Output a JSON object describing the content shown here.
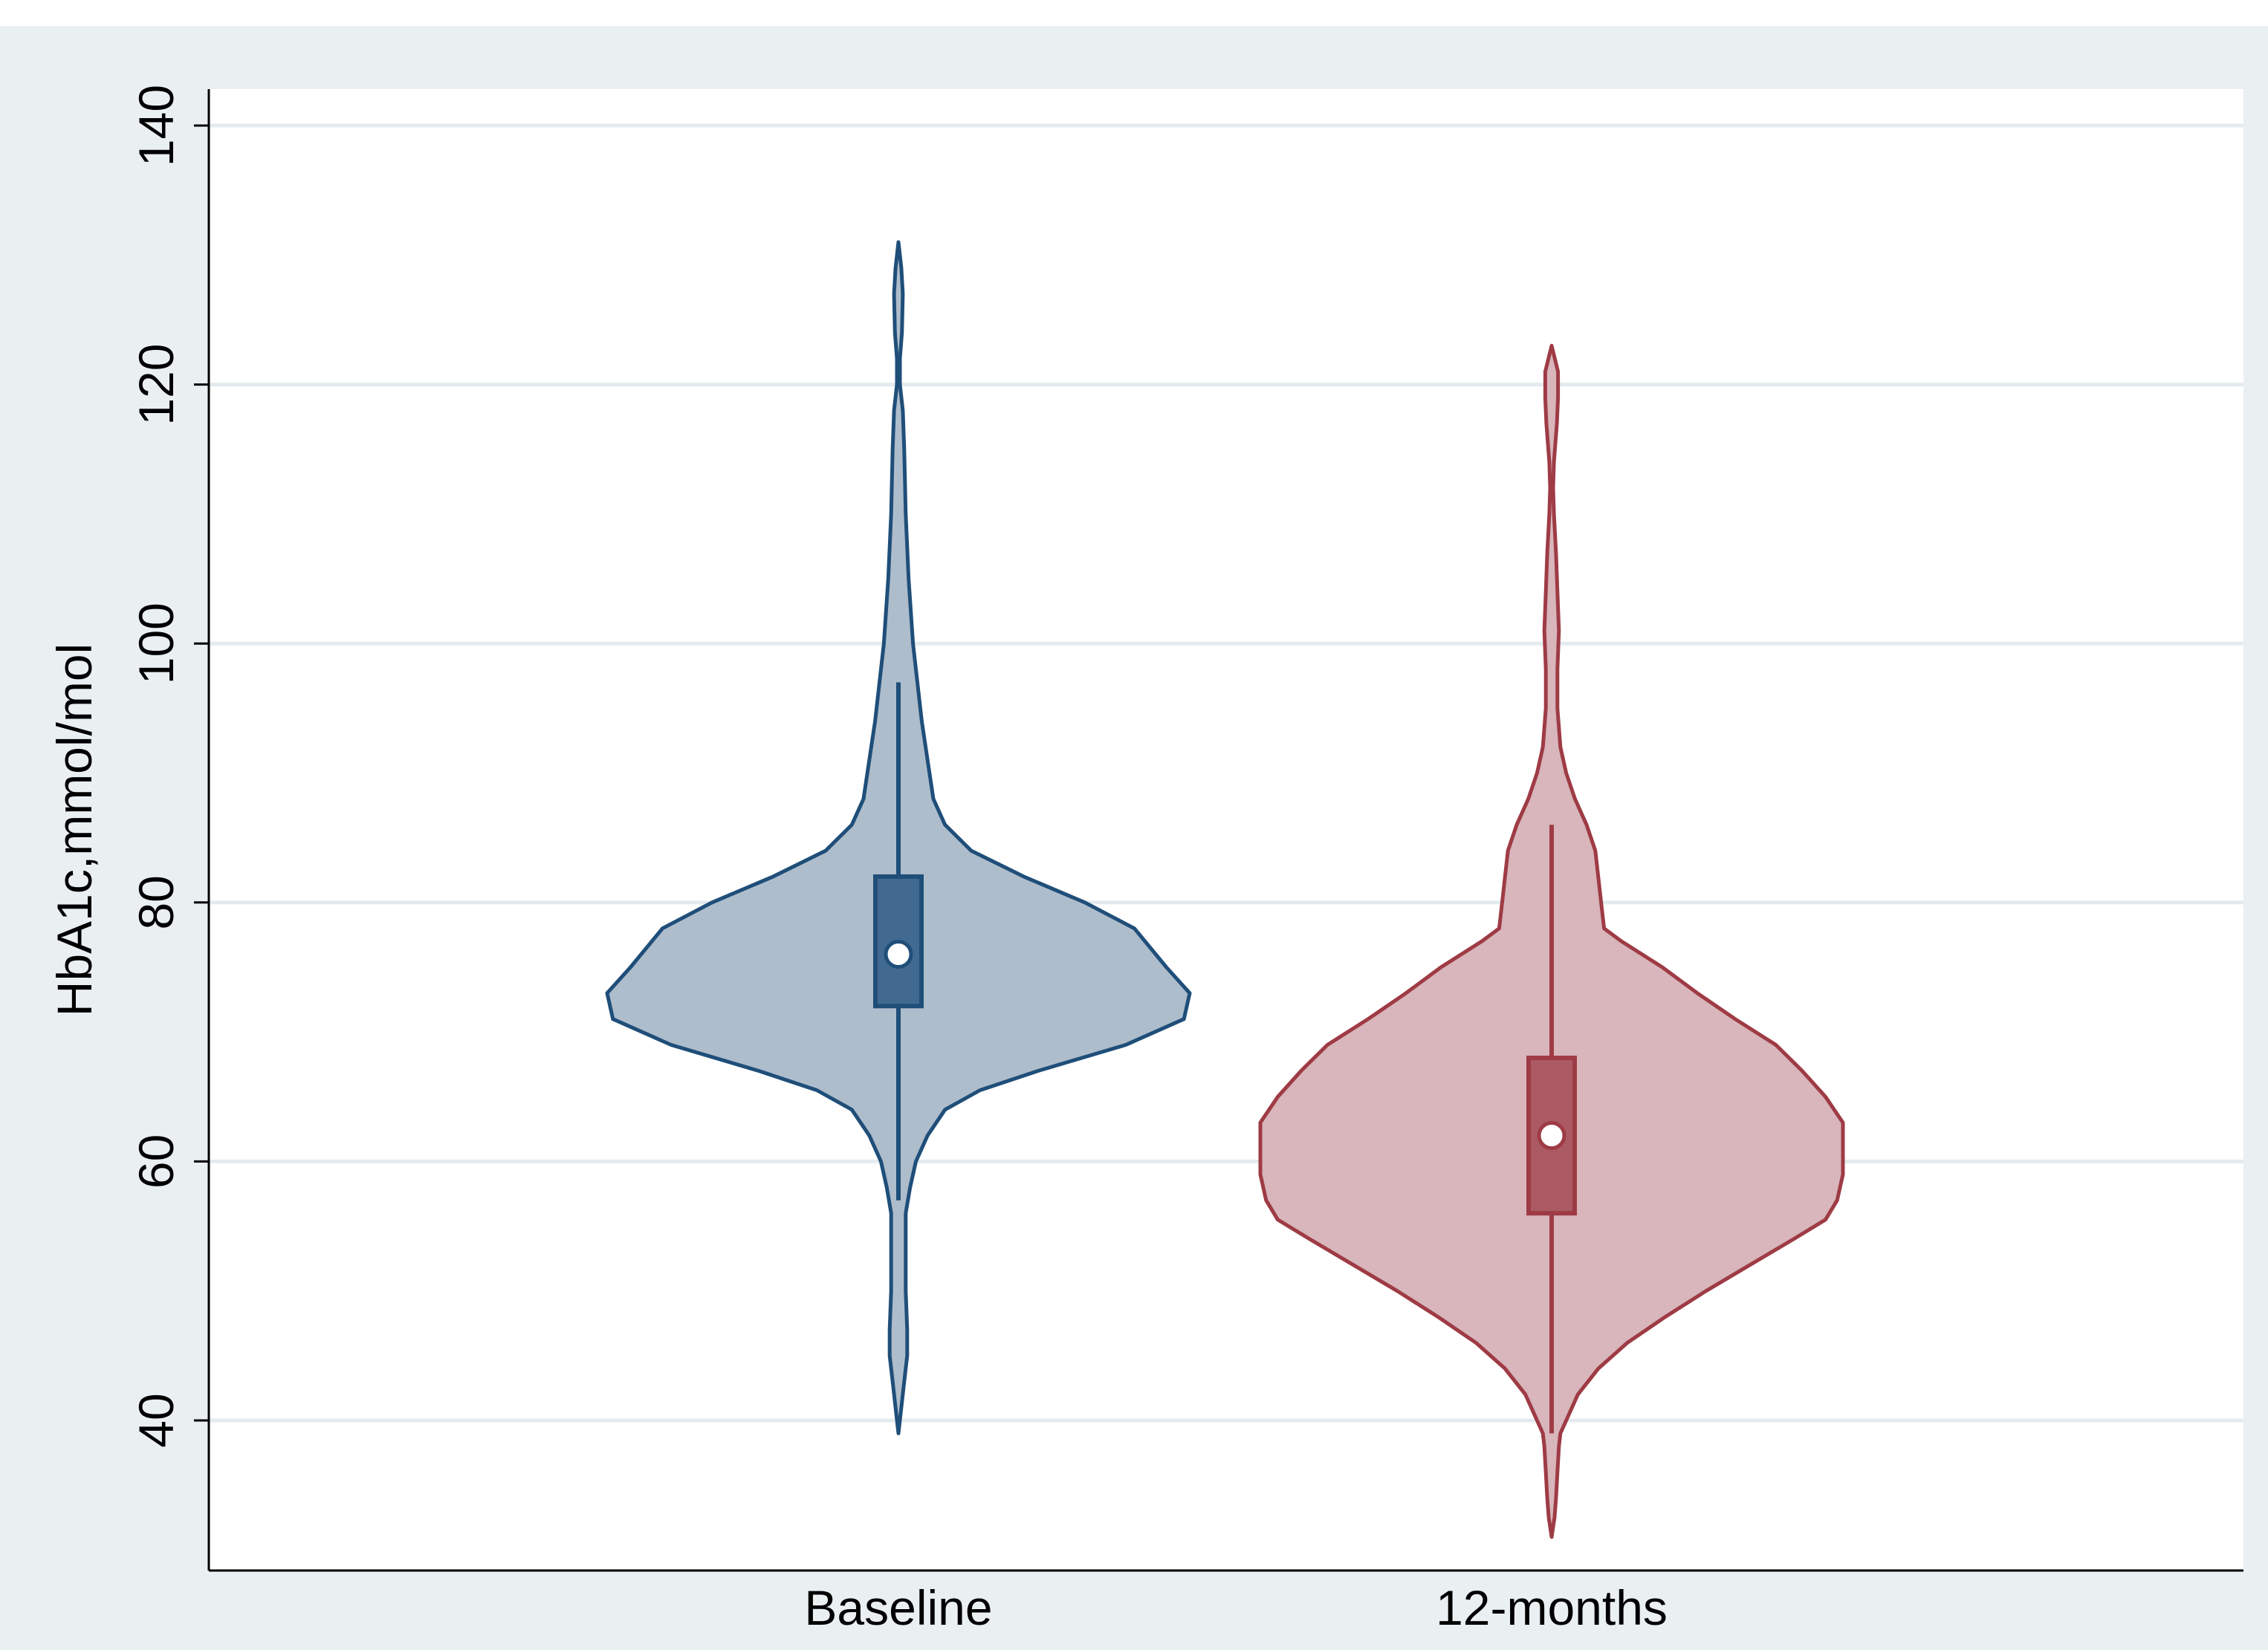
{
  "chart_data": {
    "type": "violin",
    "title": "",
    "xlabel": "",
    "ylabel": "HbA1c,mmol/mol",
    "ylim": [
      28,
      143
    ],
    "yticks": [
      40,
      60,
      80,
      100,
      120,
      140
    ],
    "grid": true,
    "legend": "none",
    "categories": [
      "Baseline",
      "12-months"
    ],
    "groups": [
      {
        "label": "Baseline",
        "box": {
          "median": 76,
          "q1": 72,
          "q3": 82,
          "whisker_low": 57,
          "whisker_high": 97
        },
        "range": [
          39,
          131
        ],
        "density": [
          [
            39,
            0.0
          ],
          [
            41,
            0.01
          ],
          [
            43,
            0.02
          ],
          [
            45,
            0.03
          ],
          [
            47,
            0.03
          ],
          [
            50,
            0.025
          ],
          [
            53,
            0.025
          ],
          [
            56,
            0.025
          ],
          [
            58,
            0.04
          ],
          [
            60,
            0.06
          ],
          [
            62,
            0.1
          ],
          [
            64,
            0.16
          ],
          [
            65.5,
            0.28
          ],
          [
            67,
            0.48
          ],
          [
            69,
            0.78
          ],
          [
            71,
            0.98
          ],
          [
            73,
            1.0
          ],
          [
            75,
            0.92
          ],
          [
            78,
            0.81
          ],
          [
            80,
            0.64
          ],
          [
            82,
            0.43
          ],
          [
            84,
            0.25
          ],
          [
            86,
            0.16
          ],
          [
            88,
            0.12
          ],
          [
            91,
            0.1
          ],
          [
            94,
            0.08
          ],
          [
            97,
            0.065
          ],
          [
            100,
            0.05
          ],
          [
            105,
            0.035
          ],
          [
            110,
            0.025
          ],
          [
            115,
            0.02
          ],
          [
            118,
            0.015
          ],
          [
            120,
            0.005
          ],
          [
            122,
            0.005
          ],
          [
            124,
            0.012
          ],
          [
            127,
            0.015
          ],
          [
            129,
            0.01
          ],
          [
            131,
            0.0
          ]
        ],
        "fill": "#aebdcc",
        "stroke": "#1f4e79",
        "box_fill": "#426a90"
      },
      {
        "label": "12-months",
        "box": {
          "median": 62,
          "q1": 56,
          "q3": 68,
          "whisker_low": 39,
          "whisker_high": 86
        },
        "range": [
          31,
          123
        ],
        "density": [
          [
            31,
            0.0
          ],
          [
            32.5,
            0.01
          ],
          [
            34,
            0.015
          ],
          [
            36,
            0.02
          ],
          [
            38,
            0.025
          ],
          [
            39,
            0.03
          ],
          [
            40,
            0.05
          ],
          [
            42,
            0.09
          ],
          [
            44,
            0.16
          ],
          [
            46,
            0.26
          ],
          [
            48,
            0.39
          ],
          [
            50,
            0.53
          ],
          [
            52,
            0.68
          ],
          [
            54,
            0.83
          ],
          [
            55.5,
            0.94
          ],
          [
            57,
            0.98
          ],
          [
            59,
            1.0
          ],
          [
            61,
            1.0
          ],
          [
            63,
            1.0
          ],
          [
            65,
            0.94
          ],
          [
            67,
            0.86
          ],
          [
            69,
            0.77
          ],
          [
            71,
            0.63
          ],
          [
            73,
            0.5
          ],
          [
            75,
            0.38
          ],
          [
            77,
            0.24
          ],
          [
            78,
            0.18
          ],
          [
            80,
            0.17
          ],
          [
            82,
            0.16
          ],
          [
            84,
            0.15
          ],
          [
            86,
            0.12
          ],
          [
            88,
            0.08
          ],
          [
            90,
            0.05
          ],
          [
            92,
            0.03
          ],
          [
            95,
            0.02
          ],
          [
            98,
            0.02
          ],
          [
            101,
            0.025
          ],
          [
            104,
            0.02
          ],
          [
            107,
            0.015
          ],
          [
            110,
            0.008
          ],
          [
            112,
            0.005
          ],
          [
            114,
            0.008
          ],
          [
            117,
            0.018
          ],
          [
            119,
            0.022
          ],
          [
            121,
            0.022
          ],
          [
            123,
            0.0
          ]
        ],
        "fill": "#d8b6bb",
        "stroke": "#9e3b45",
        "box_fill": "#ab5a64"
      }
    ],
    "colors": {
      "outer_background": "#eaf0f2",
      "plot_background": "#ffffff",
      "grid": "#e3ebee",
      "axis": "#000000"
    }
  }
}
